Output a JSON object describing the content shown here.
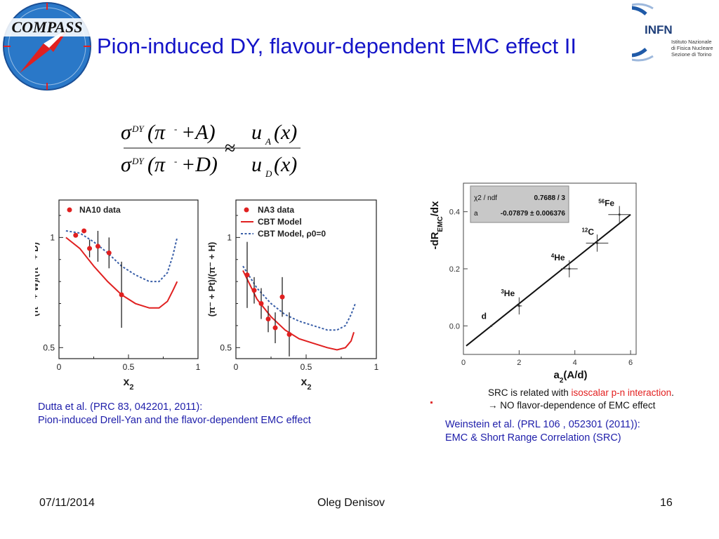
{
  "slide": {
    "title": "Pion-induced DY, flavour-dependent EMC effect II",
    "logos": {
      "compass": "COMPASS",
      "infn": "INFN",
      "infn_sub": [
        "Istituto Nazionale",
        "di Fisica Nucleare",
        "Sezione di Torino"
      ]
    },
    "formula": {
      "numerator": [
        "σ",
        "DY",
        "(π",
        "-",
        "+A)",
        "u",
        "A",
        "(x)"
      ],
      "denominator": [
        "σ",
        "DY",
        "(π",
        "-",
        "+D)",
        "u",
        "D",
        "(x)"
      ],
      "relation": "≈"
    },
    "caption_left": [
      "Dutta et al. (PRC 83, 042201, 2011):",
      "Pion-induced Drell-Yan and the flavor-dependent EMC effect"
    ],
    "caption_right": [
      "Weinstein et al. (PRL 106 , 052301 (2011)):",
      "EMC & Short Range Correlation (SRC)"
    ],
    "note": {
      "line1_prefix": "SRC is related with ",
      "line1_highlight": "isoscalar p-n interaction",
      "line1_suffix": ".",
      "line2": "→ NO flavor-dependence of EMC effect"
    },
    "footer": {
      "date": "07/11/2014",
      "author": "Oleg Denisov",
      "page": "16"
    }
  },
  "chart_data": [
    {
      "type": "scatter",
      "xlabel": "x2",
      "ylabel": "(π⁻ + W)/(π⁻ + D)",
      "xlim": [
        0,
        1
      ],
      "ylim": [
        0.45,
        1.17
      ],
      "xticks": [
        "0",
        "0.5",
        "1"
      ],
      "yticks": [
        "0.5",
        "1"
      ],
      "legend": [
        "NA10 data"
      ],
      "points": [
        {
          "x": 0.12,
          "y": 1.01,
          "err": 0.0
        },
        {
          "x": 0.18,
          "y": 1.03,
          "err": 0.0
        },
        {
          "x": 0.22,
          "y": 0.95,
          "err": 0.04
        },
        {
          "x": 0.28,
          "y": 0.96,
          "err": 0.07
        },
        {
          "x": 0.36,
          "y": 0.93,
          "err": 0.07
        },
        {
          "x": 0.45,
          "y": 0.74,
          "err": 0.15
        }
      ],
      "curves": [
        {
          "name": "CBT Model",
          "style": "solid",
          "color": "#e02020",
          "x": [
            0.05,
            0.15,
            0.25,
            0.35,
            0.45,
            0.55,
            0.65,
            0.72,
            0.78,
            0.82,
            0.85
          ],
          "y": [
            1.0,
            0.95,
            0.87,
            0.8,
            0.74,
            0.7,
            0.68,
            0.68,
            0.71,
            0.76,
            0.8
          ]
        },
        {
          "name": "CBT Model, ρ0=0",
          "style": "dashed",
          "color": "#3a5fa8",
          "x": [
            0.05,
            0.15,
            0.25,
            0.35,
            0.45,
            0.55,
            0.65,
            0.72,
            0.78,
            0.82,
            0.85
          ],
          "y": [
            1.03,
            1.02,
            0.98,
            0.93,
            0.87,
            0.83,
            0.8,
            0.8,
            0.84,
            0.92,
            1.0
          ]
        }
      ]
    },
    {
      "type": "scatter",
      "xlabel": "x2",
      "ylabel": "(π⁻ + Pt)/(π⁻ + H)",
      "xlim": [
        0,
        1
      ],
      "ylim": [
        0.45,
        1.17
      ],
      "xticks": [
        "0",
        "0.5",
        "1"
      ],
      "yticks": [
        "0.5",
        "1"
      ],
      "legend": [
        "NA3 data",
        "CBT Model",
        "CBT Model, ρ0=0"
      ],
      "points": [
        {
          "x": 0.08,
          "y": 0.83,
          "err": 0.15
        },
        {
          "x": 0.13,
          "y": 0.76,
          "err": 0.06
        },
        {
          "x": 0.18,
          "y": 0.7,
          "err": 0.07
        },
        {
          "x": 0.23,
          "y": 0.63,
          "err": 0.06
        },
        {
          "x": 0.28,
          "y": 0.59,
          "err": 0.07
        },
        {
          "x": 0.33,
          "y": 0.73,
          "err": 0.09
        },
        {
          "x": 0.38,
          "y": 0.56,
          "err": 0.1
        }
      ],
      "curves": [
        {
          "name": "CBT Model",
          "style": "solid",
          "color": "#e02020",
          "x": [
            0.05,
            0.15,
            0.25,
            0.35,
            0.45,
            0.55,
            0.65,
            0.72,
            0.78,
            0.82,
            0.84
          ],
          "y": [
            0.85,
            0.72,
            0.64,
            0.58,
            0.54,
            0.52,
            0.5,
            0.49,
            0.5,
            0.53,
            0.57
          ]
        },
        {
          "name": "CBT Model, ρ0=0",
          "style": "dashed",
          "color": "#3a5fa8",
          "x": [
            0.05,
            0.15,
            0.25,
            0.35,
            0.45,
            0.55,
            0.65,
            0.72,
            0.78,
            0.82,
            0.85
          ],
          "y": [
            0.87,
            0.77,
            0.7,
            0.65,
            0.62,
            0.6,
            0.58,
            0.58,
            0.6,
            0.65,
            0.7
          ]
        }
      ]
    },
    {
      "type": "scatter",
      "xlabel": "a2(A/d)",
      "ylabel": "-dR_EMC/dx",
      "xlim": [
        0,
        6.2
      ],
      "ylim": [
        -0.1,
        0.5
      ],
      "xticks": [
        "0",
        "2",
        "4",
        "6"
      ],
      "yticks": [
        "0.0",
        "0.2",
        "0.4"
      ],
      "fit_box": [
        {
          "label": "χ2 / ndf",
          "value": "0.7688 / 3"
        },
        {
          "label": "a",
          "value": "-0.07879 ± 0.006376"
        }
      ],
      "points": [
        {
          "label": "d",
          "x": 1.0,
          "y": 0.0,
          "xerr": 0.0,
          "yerr": 0.0
        },
        {
          "label": "3He",
          "x": 2.0,
          "y": 0.07,
          "xerr": 0.1,
          "yerr": 0.03
        },
        {
          "label": "4He",
          "x": 3.8,
          "y": 0.2,
          "xerr": 0.3,
          "yerr": 0.03
        },
        {
          "label": "12C",
          "x": 4.8,
          "y": 0.29,
          "xerr": 0.4,
          "yerr": 0.03
        },
        {
          "label": "56Fe",
          "x": 5.6,
          "y": 0.39,
          "xerr": 0.4,
          "yerr": 0.03
        }
      ],
      "fit_line": {
        "x": [
          0.1,
          6.0
        ],
        "y": [
          -0.07,
          0.39
        ]
      }
    }
  ]
}
